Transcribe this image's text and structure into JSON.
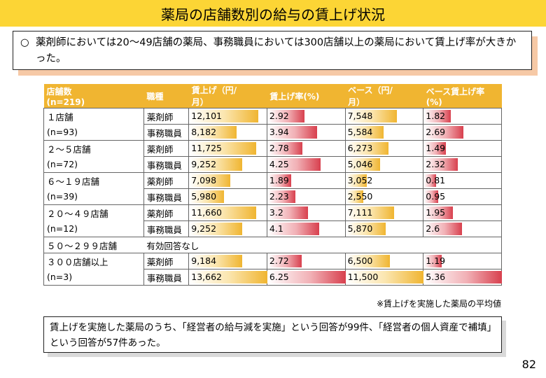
{
  "title": "薬局の店舗数別の給与の賃上げ状況",
  "summary": {
    "bullet": "○",
    "text": "薬剤師においては20～49店舗の薬局、事務職員においては300店舗以上の薬局において賃上げ率が大きかった。"
  },
  "table": {
    "headers": {
      "stores": "店舗数",
      "stores_n": "(n=219)",
      "job": "職種",
      "raise_amount": "賃上げ（円/",
      "raise_amount2": "月）",
      "raise_rate": "賃上げ率(%)",
      "base_amount": "ベース（円/",
      "base_amount2": "月）",
      "base_rate": "ベース賃上げ率",
      "base_rate2": "(%)"
    },
    "groups": [
      {
        "name": "１店舗",
        "n": "(n=93)",
        "rows": [
          {
            "job": "薬剤師",
            "raise": "12,101",
            "rate": "2.92",
            "base": "7,548",
            "brate": "1.82"
          },
          {
            "job": "事務職員",
            "raise": "8,182",
            "rate": "3.94",
            "base": "5,584",
            "brate": "2.69"
          }
        ]
      },
      {
        "name": "２～５店舗",
        "n": "(n=72)",
        "rows": [
          {
            "job": "薬剤師",
            "raise": "11,725",
            "rate": "2.78",
            "base": "6,273",
            "brate": "1.49"
          },
          {
            "job": "事務職員",
            "raise": "9,252",
            "rate": "4.25",
            "base": "5,046",
            "brate": "2.32"
          }
        ]
      },
      {
        "name": "６～１９店舗",
        "n": "(n=39)",
        "rows": [
          {
            "job": "薬剤師",
            "raise": "7,098",
            "rate": "1.89",
            "base": "3,052",
            "brate": "0.81"
          },
          {
            "job": "事務職員",
            "raise": "5,980",
            "rate": "2.23",
            "base": "2,550",
            "brate": "0.95"
          }
        ]
      },
      {
        "name": "２０～４９店舗",
        "n": "(n=12)",
        "rows": [
          {
            "job": "薬剤師",
            "raise": "11,660",
            "rate": "3.2",
            "base": "7,111",
            "brate": "1.95"
          },
          {
            "job": "事務職員",
            "raise": "9,252",
            "rate": "4.1",
            "base": "5,870",
            "brate": "2.6"
          }
        ]
      },
      {
        "name": "５０～２９９店舗",
        "no_answer": "有効回答なし"
      },
      {
        "name": "３００店舗以上",
        "n": "(n=3)",
        "rows": [
          {
            "job": "薬剤師",
            "raise": "9,184",
            "rate": "2.72",
            "base": "6,500",
            "brate": "1.19"
          },
          {
            "job": "事務職員",
            "raise": "13,662",
            "rate": "6.25",
            "base": "11,500",
            "brate": "5.36"
          }
        ]
      }
    ]
  },
  "note": "※賃上げを実施した薬局の平均値",
  "bottom_text": "賃上げを実施した薬局のうち、「経営者の給与減を実施」という回答が99件、「経営者の個人資産で補填」という回答が57件あった。",
  "page_number": "82",
  "colors": {
    "gold": "#f0b531",
    "red": "#d8404e",
    "title_bg": "#fcd535"
  }
}
